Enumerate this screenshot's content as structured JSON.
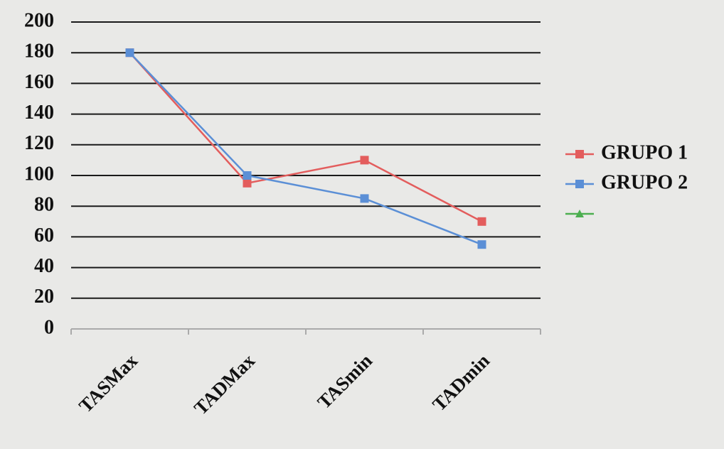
{
  "chart_data": {
    "type": "line",
    "categories": [
      "TASMax",
      "TADMax",
      "TASmin",
      "TADmin"
    ],
    "series": [
      {
        "name": "GRUPO 1",
        "color": "#e35d5d",
        "marker": "square",
        "values": [
          180,
          95,
          110,
          70
        ]
      },
      {
        "name": "GRUPO 2",
        "color": "#5b8fd6",
        "marker": "square",
        "values": [
          180,
          100,
          85,
          55
        ]
      },
      {
        "color": "#4caf50",
        "marker": "triangle",
        "values": [
          null,
          null,
          null,
          null
        ]
      }
    ],
    "ylim": [
      0,
      200
    ],
    "yticks": [
      0,
      20,
      40,
      60,
      80,
      100,
      120,
      140,
      160,
      180,
      200
    ],
    "grid": true,
    "legend": "right"
  }
}
